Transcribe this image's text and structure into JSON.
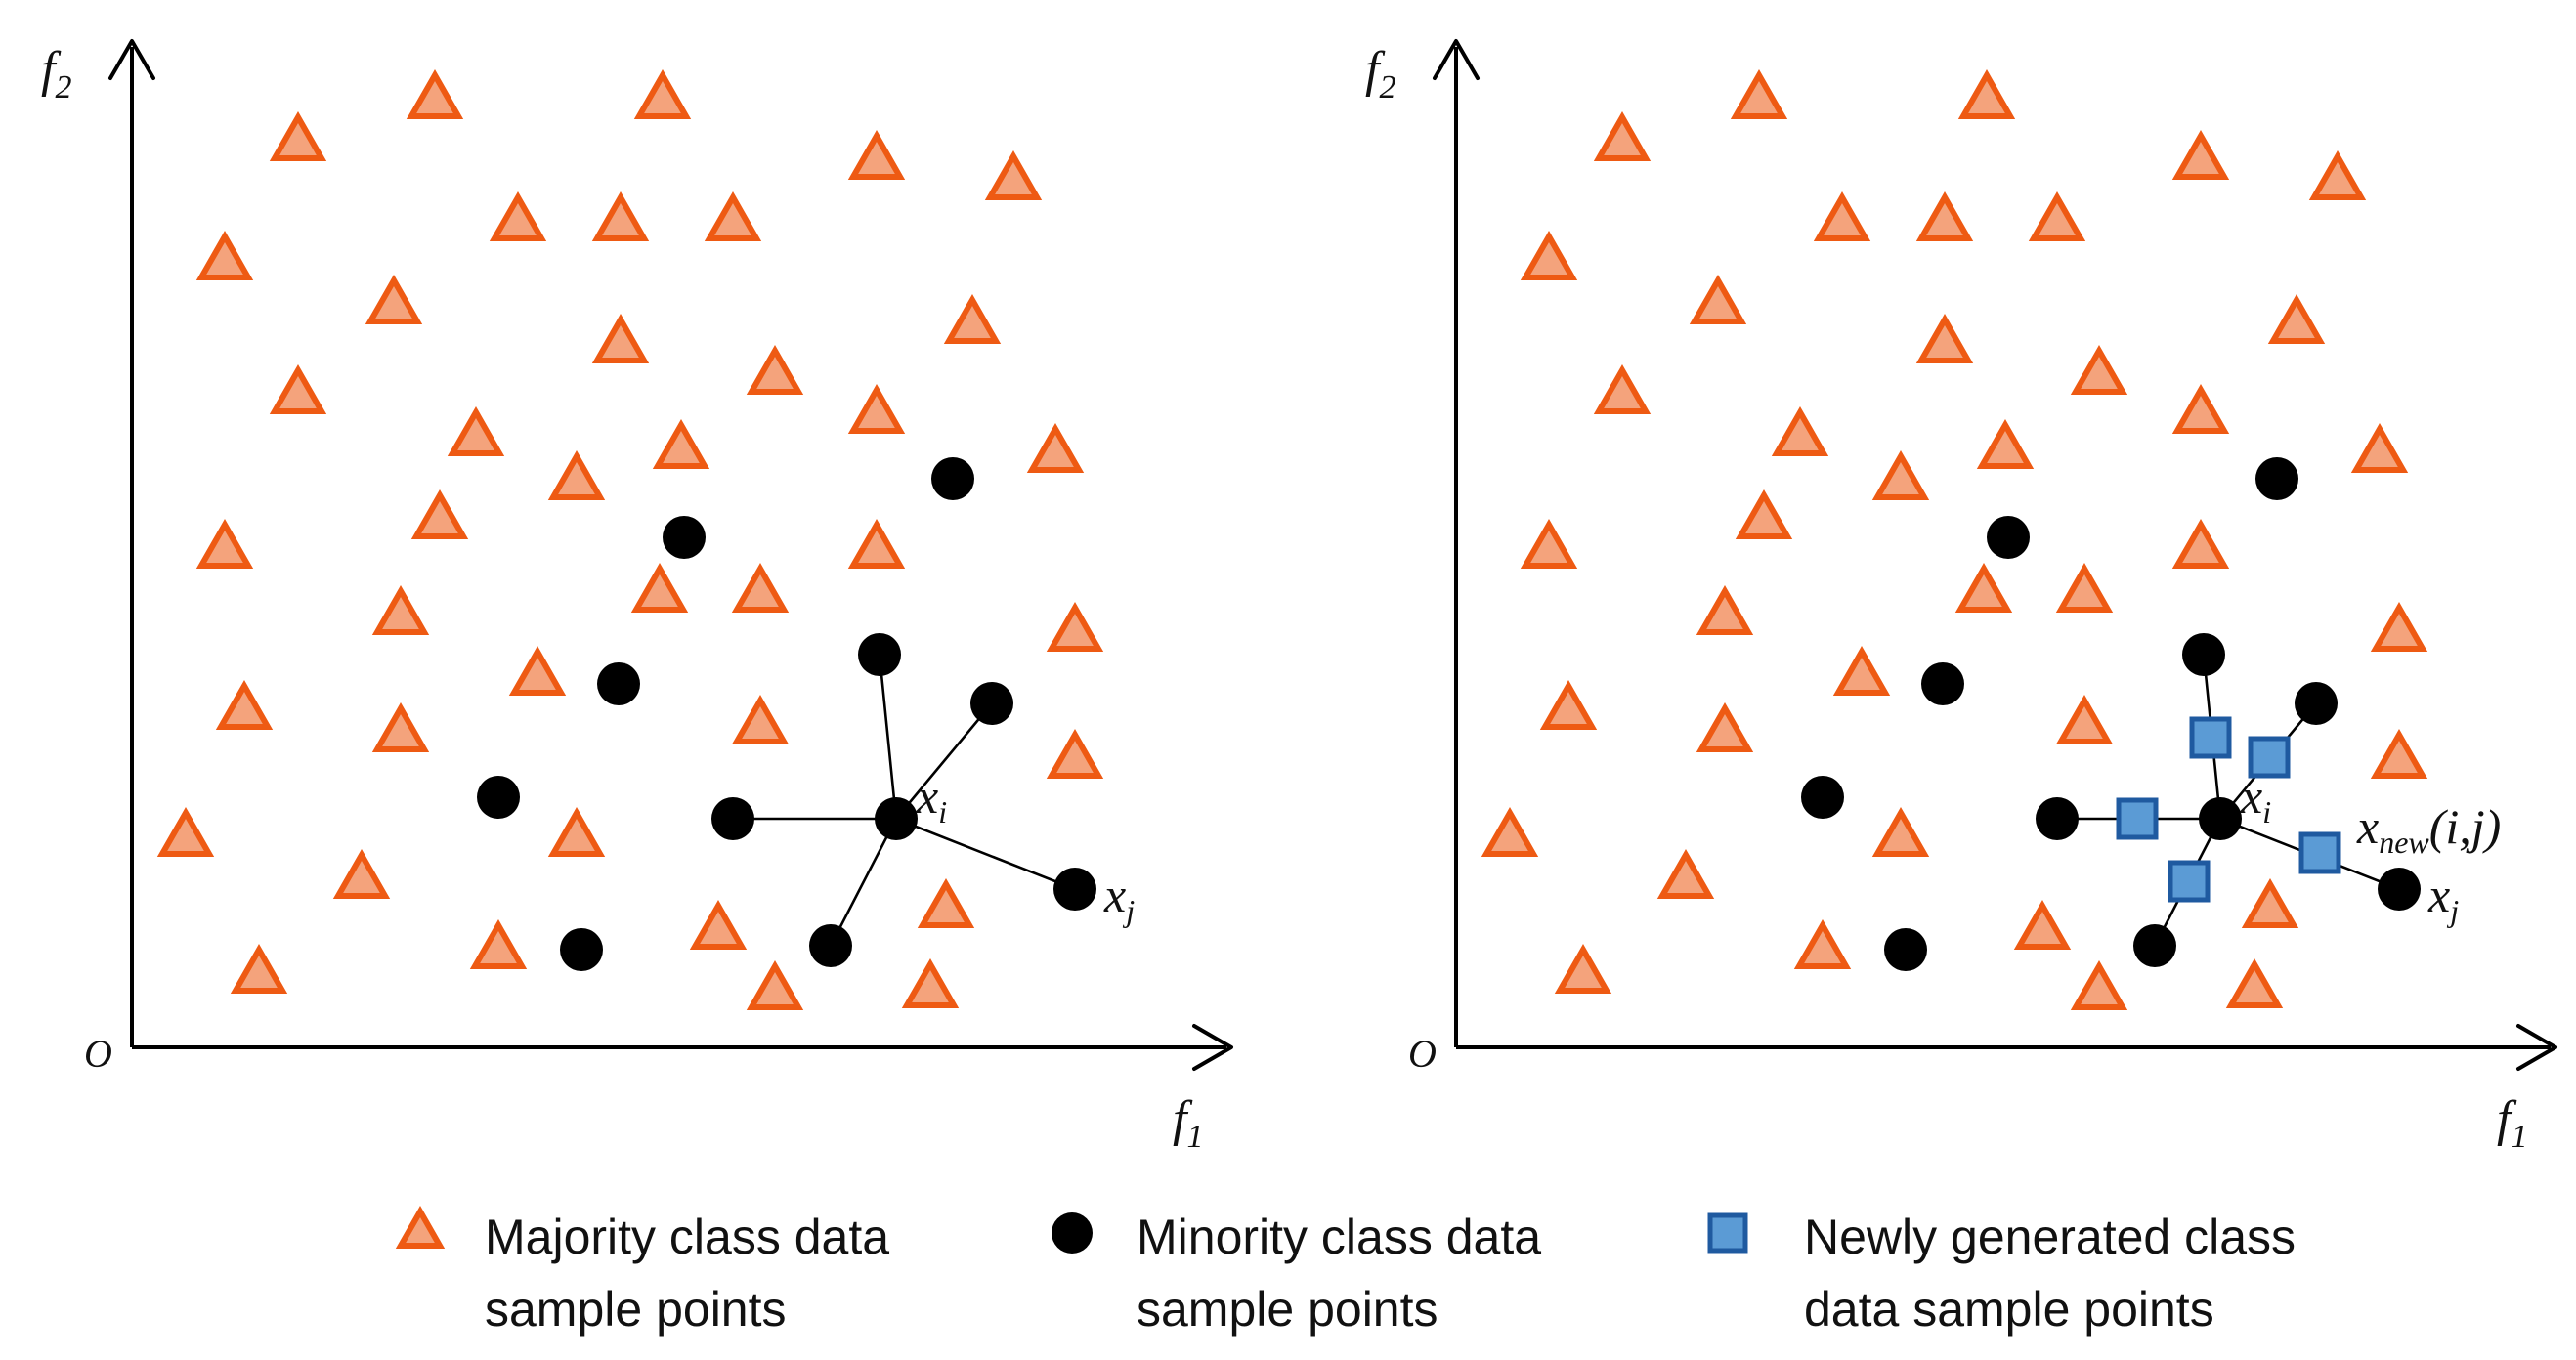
{
  "colors": {
    "majority_fill": "#f4a37c",
    "majority_stroke": "#ee5a13",
    "minority_fill": "#000000",
    "new_fill": "#5b9bd5",
    "new_stroke": "#1f5aa0"
  },
  "axes": {
    "y_label": "f",
    "y_sub": "2",
    "x_label": "f",
    "x_sub": "1",
    "origin": "O"
  },
  "labels": {
    "xi_base": "x",
    "xi_sub": "i",
    "xj_base": "x",
    "xj_sub": "j",
    "xnew_base": "x",
    "xnew_sub": "new",
    "xnew_suffix": "(i,j)"
  },
  "legend": [
    {
      "name": "legend-majority",
      "symbol": "triangle",
      "line1": "Majority class data",
      "line2": "sample points"
    },
    {
      "name": "legend-minority",
      "symbol": "circle",
      "line1": "Minority class data",
      "line2": "sample points"
    },
    {
      "name": "legend-new",
      "symbol": "square",
      "line1": "Newly generated class",
      "line2": "data sample points"
    }
  ]
}
